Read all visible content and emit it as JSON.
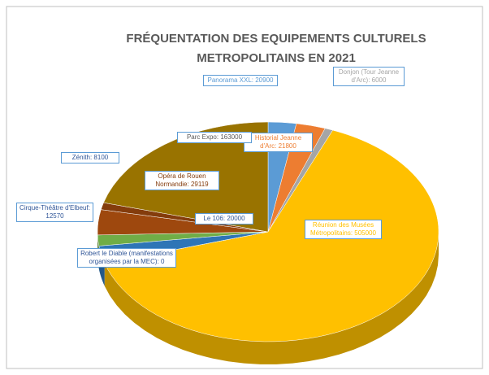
{
  "chart_data": {
    "type": "pie",
    "title": "FRÉQUENTATION DES EQUIPEMENTS CULTURELS METROPOLITAINS EN 2021",
    "values": [
      20900,
      21800,
      6000,
      505000,
      0,
      20000,
      12570,
      29119,
      8100,
      163000
    ],
    "value_labels": [
      "Panorama XXL: 20900",
      "Historial Jeanne d'Arc: 21800",
      "Donjon (Tour Jeanne d'Arc): 6000",
      "Réunion des Musées Métropolitains: 505000",
      "Robert le Diable (manifestations organisées par la MEC): 0",
      "Le 106: 20000",
      "Cirque-Théâtre d'Elbeuf: 12570",
      "Opéra de Rouen Normandie: 29119",
      "Zénith: 8100",
      "Parc Expo: 163000"
    ],
    "colors": [
      "#5b9bd5",
      "#ed7d31",
      "#a5a5a5",
      "#ffc000",
      "#4472c4",
      "#2e75b6",
      "#70ad47",
      "#9e480e",
      "#843c0c",
      "#997300"
    ]
  }
}
